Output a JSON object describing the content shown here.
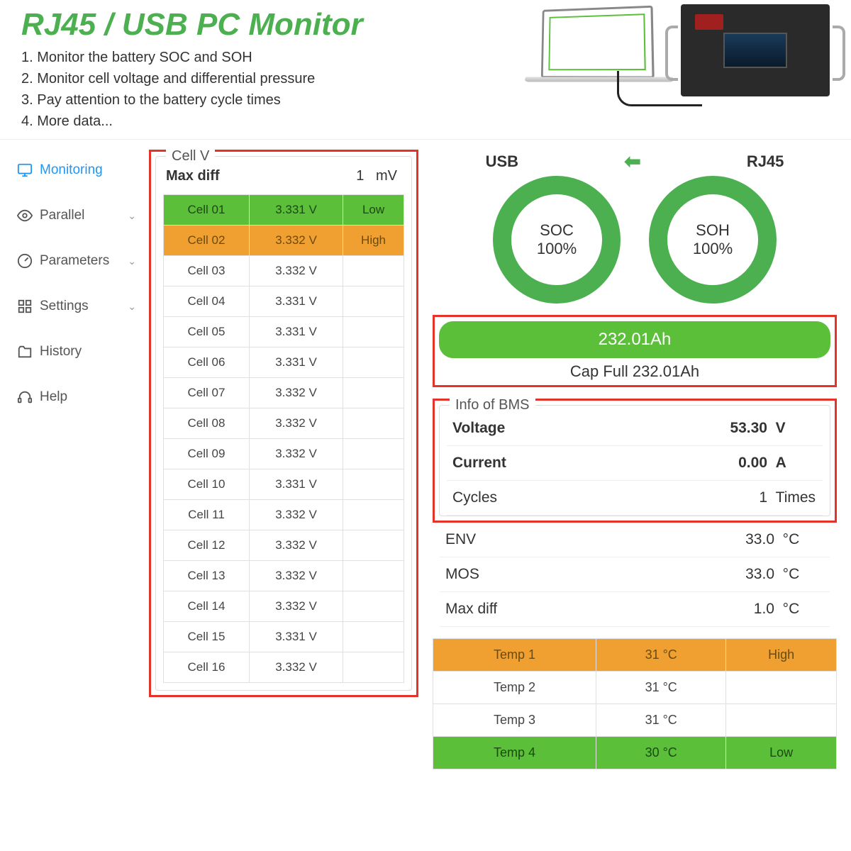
{
  "header": {
    "title": "RJ45 / USB PC Monitor",
    "bullets": [
      "1. Monitor the battery SOC and SOH",
      "2. Monitor cell voltage and differential pressure",
      "3. Pay attention to the battery cycle times",
      "4. More data..."
    ],
    "title_color": "#4CAF50"
  },
  "sidebar": {
    "items": [
      {
        "label": "Monitoring",
        "icon": "monitor-icon",
        "active": true,
        "expandable": false
      },
      {
        "label": "Parallel",
        "icon": "eye-icon",
        "active": false,
        "expandable": true
      },
      {
        "label": "Parameters",
        "icon": "gauge-icon",
        "active": false,
        "expandable": true
      },
      {
        "label": "Settings",
        "icon": "settings-icon",
        "active": false,
        "expandable": true
      },
      {
        "label": "History",
        "icon": "folder-icon",
        "active": false,
        "expandable": false
      },
      {
        "label": "Help",
        "icon": "headset-icon",
        "active": false,
        "expandable": false
      }
    ]
  },
  "cell_panel": {
    "title": "Cell V",
    "max_diff_label": "Max diff",
    "max_diff_value": "1",
    "max_diff_unit": "mV",
    "low_color": "#5bbf3a",
    "high_color": "#f0a030",
    "rows": [
      {
        "name": "Cell 01",
        "v": "3.331 V",
        "tag": "Low",
        "state": "low"
      },
      {
        "name": "Cell 02",
        "v": "3.332 V",
        "tag": "High",
        "state": "high"
      },
      {
        "name": "Cell 03",
        "v": "3.332 V",
        "tag": "",
        "state": ""
      },
      {
        "name": "Cell 04",
        "v": "3.331 V",
        "tag": "",
        "state": ""
      },
      {
        "name": "Cell 05",
        "v": "3.331 V",
        "tag": "",
        "state": ""
      },
      {
        "name": "Cell 06",
        "v": "3.331 V",
        "tag": "",
        "state": ""
      },
      {
        "name": "Cell 07",
        "v": "3.332 V",
        "tag": "",
        "state": ""
      },
      {
        "name": "Cell 08",
        "v": "3.332 V",
        "tag": "",
        "state": ""
      },
      {
        "name": "Cell 09",
        "v": "3.332 V",
        "tag": "",
        "state": ""
      },
      {
        "name": "Cell 10",
        "v": "3.331 V",
        "tag": "",
        "state": ""
      },
      {
        "name": "Cell 11",
        "v": "3.332 V",
        "tag": "",
        "state": ""
      },
      {
        "name": "Cell 12",
        "v": "3.332 V",
        "tag": "",
        "state": ""
      },
      {
        "name": "Cell 13",
        "v": "3.332 V",
        "tag": "",
        "state": ""
      },
      {
        "name": "Cell 14",
        "v": "3.332 V",
        "tag": "",
        "state": ""
      },
      {
        "name": "Cell 15",
        "v": "3.331 V",
        "tag": "",
        "state": ""
      },
      {
        "name": "Cell 16",
        "v": "3.332 V",
        "tag": "",
        "state": ""
      }
    ]
  },
  "top": {
    "usb_label": "USB",
    "rj45_label": "RJ45",
    "ring_color": "#4CAF50",
    "soc": {
      "label": "SOC",
      "value": "100%"
    },
    "soh": {
      "label": "SOH",
      "value": "100%"
    }
  },
  "capacity": {
    "bar_text": "232.01Ah",
    "full_label": "Cap Full",
    "full_value": "232.01Ah",
    "bar_color": "#5bbf3a"
  },
  "bms": {
    "title": "Info of BMS",
    "rows": [
      {
        "label": "Voltage",
        "value": "53.30",
        "unit": "V",
        "bold": true
      },
      {
        "label": "Current",
        "value": "0.00",
        "unit": "A",
        "bold": true
      },
      {
        "label": "Cycles",
        "value": "1",
        "unit": "Times",
        "bold": false
      },
      {
        "label": "ENV",
        "value": "33.0",
        "unit": "°C",
        "bold": false
      },
      {
        "label": "MOS",
        "value": "33.0",
        "unit": "°C",
        "bold": false
      },
      {
        "label": "Max diff",
        "value": "1.0",
        "unit": "°C",
        "bold": false
      }
    ]
  },
  "temps": {
    "high_color": "#f0a030",
    "low_color": "#5bbf3a",
    "rows": [
      {
        "name": "Temp 1",
        "v": "31 °C",
        "tag": "High",
        "state": "high"
      },
      {
        "name": "Temp 2",
        "v": "31 °C",
        "tag": "",
        "state": ""
      },
      {
        "name": "Temp 3",
        "v": "31 °C",
        "tag": "",
        "state": ""
      },
      {
        "name": "Temp 4",
        "v": "30 °C",
        "tag": "Low",
        "state": "low"
      }
    ]
  },
  "highlight_border_color": "#e5332a"
}
